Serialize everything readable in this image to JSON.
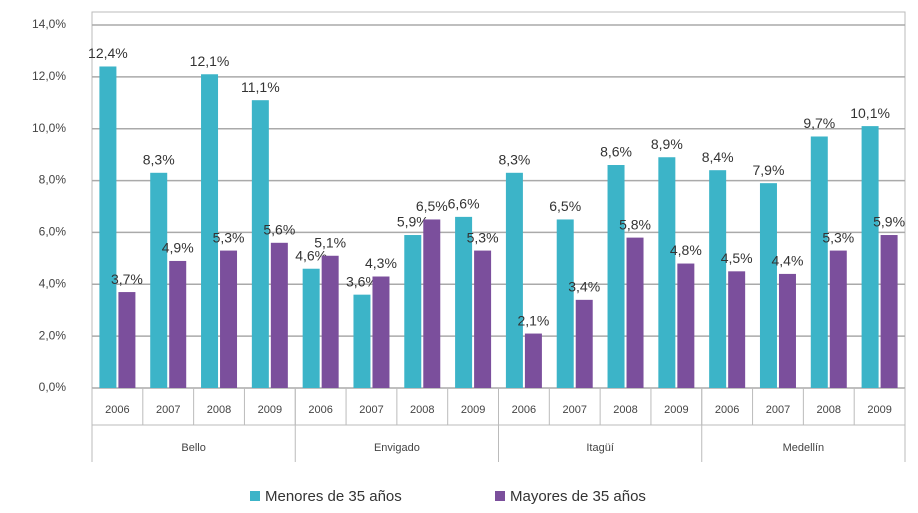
{
  "chart_data": {
    "type": "bar",
    "categories": [
      "2006",
      "2007",
      "2008",
      "2009",
      "2006",
      "2007",
      "2008",
      "2009",
      "2006",
      "2007",
      "2008",
      "2009",
      "2006",
      "2007",
      "2008",
      "2009"
    ],
    "group_labels": [
      "Bello",
      "Envigado",
      "Itagüí",
      "Medellín"
    ],
    "series": [
      {
        "name": "Menores de 35 años",
        "color": "#3cb4c8",
        "values": [
          12.4,
          8.3,
          12.1,
          11.1,
          4.6,
          3.6,
          5.9,
          6.6,
          8.3,
          6.5,
          8.6,
          8.9,
          8.4,
          7.9,
          9.7,
          10.1
        ],
        "value_labels": [
          "12,4%",
          "8,3%",
          "12,1%",
          "11,1%",
          "4,6%",
          "3,6%",
          "5,9%",
          "6,6%",
          "8,3%",
          "6,5%",
          "8,6%",
          "8,9%",
          "8,4%",
          "7,9%",
          "9,7%",
          "10,1%"
        ]
      },
      {
        "name": "Mayores de 35 años",
        "color": "#7b4f9c",
        "values": [
          3.7,
          4.9,
          5.3,
          5.6,
          5.1,
          4.3,
          6.5,
          5.3,
          2.1,
          3.4,
          5.8,
          4.8,
          4.5,
          4.4,
          5.3,
          5.9
        ],
        "value_labels": [
          "3,7%",
          "4,9%",
          "5,3%",
          "5,6%",
          "5,1%",
          "4,3%",
          "6,5%",
          "5,3%",
          "2,1%",
          "3,4%",
          "5,8%",
          "4,8%",
          "4,5%",
          "4,4%",
          "5,3%",
          "5,9%"
        ]
      }
    ],
    "ylim": [
      0,
      14
    ],
    "yticks": [
      {
        "value": 0,
        "label": "0,0%"
      },
      {
        "value": 2,
        "label": "2,0%"
      },
      {
        "value": 4,
        "label": "4,0%"
      },
      {
        "value": 6,
        "label": "6,0%"
      },
      {
        "value": 8,
        "label": "8,0%"
      },
      {
        "value": 10,
        "label": "10,0%"
      },
      {
        "value": 12,
        "label": "12,0%"
      },
      {
        "value": 14,
        "label": "14,0%"
      }
    ],
    "grid": true
  }
}
